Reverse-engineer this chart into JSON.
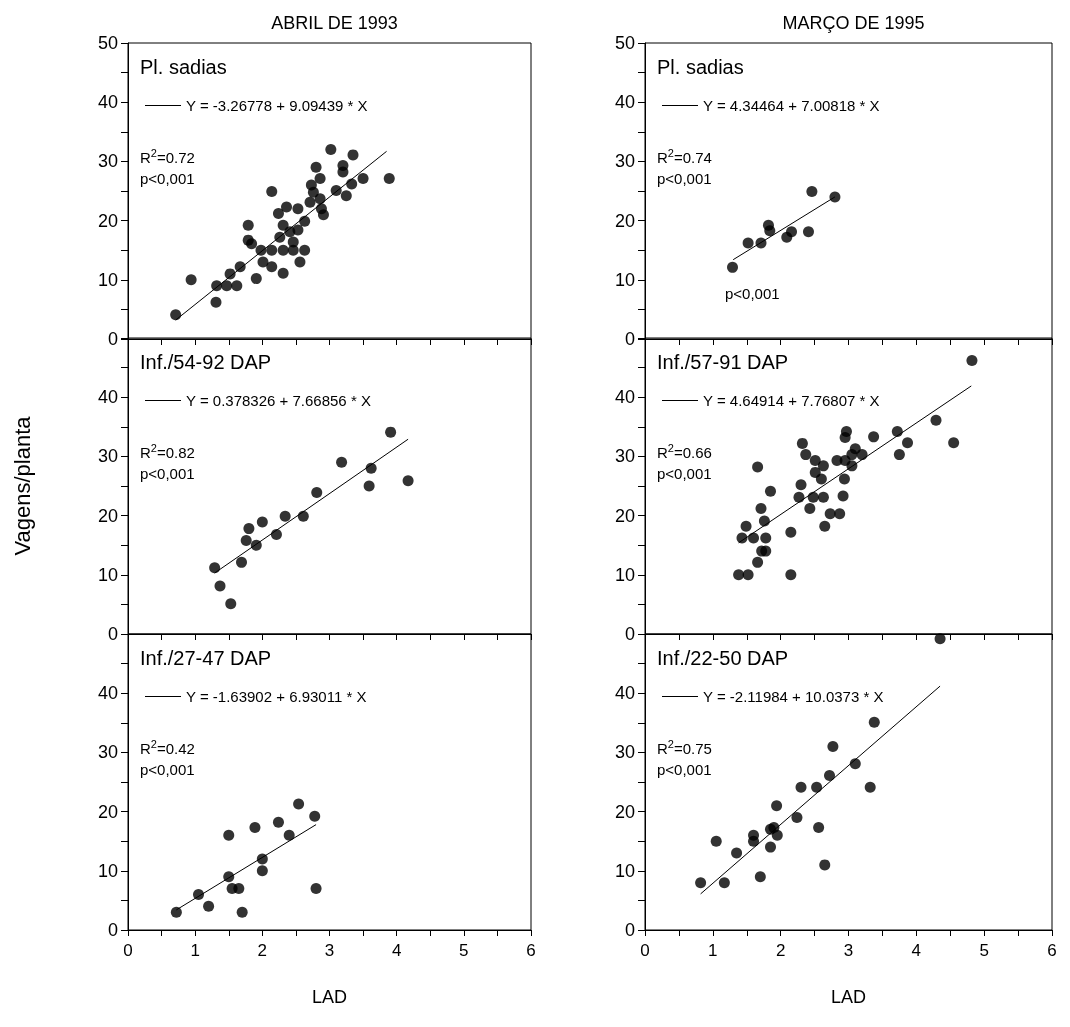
{
  "chart_data": [
    {
      "type": "scatter",
      "title": "ABRIL DE 1993",
      "legend": "top left",
      "tick_labels": "y",
      "annotations": [
        "Pl. sadias",
        "R$^{2}$=0.72",
        "p<0,001"
      ],
      "xlim": [
        0,
        6
      ],
      "xticks": [
        0,
        {
          "value": 0.5,
          "label": null
        },
        {
          "value": 1,
          "label": null
        },
        {
          "value": 1.5,
          "label": null
        },
        {
          "value": 2,
          "label": null
        },
        {
          "value": 2.5,
          "label": null
        },
        {
          "value": 3,
          "label": null
        },
        {
          "value": 3.5,
          "label": null
        },
        {
          "value": 4,
          "label": null
        },
        {
          "value": 4.5,
          "label": null
        },
        {
          "value": 5,
          "label": null
        },
        {
          "value": 5.5,
          "label": null
        },
        {
          "value": 6,
          "label": null
        }
      ],
      "ylim": [
        0,
        50
      ],
      "yticks": [
        0,
        {
          "value": 5,
          "label": null
        },
        10,
        {
          "value": 15,
          "label": null
        },
        20,
        {
          "value": 25,
          "label": null
        },
        30,
        {
          "value": 35,
          "label": null
        },
        40,
        {
          "value": 45,
          "label": null
        },
        50
      ],
      "series": [
        {
          "marker": "circle",
          "color": "#000000",
          "x": [
            0.71,
            0.94,
            1.31,
            1.32,
            1.47,
            1.62,
            1.52,
            1.67,
            1.91,
            2.31,
            2.14,
            2.01,
            2.56,
            1.98,
            2.14,
            2.31,
            2.46,
            2.63,
            2.46,
            2.26,
            2.53,
            2.41,
            2.31,
            1.79,
            1.84,
            1.79,
            2.24,
            2.36,
            2.53,
            2.63,
            2.91,
            2.88,
            2.86,
            2.71,
            2.76,
            2.73,
            2.86,
            2.8,
            2.14,
            3.1,
            3.25,
            3.33,
            3.5,
            3.89,
            3.2,
            3.2,
            3.35,
            3.02
          ],
          "values": [
            4.1,
            10,
            6.2,
            9,
            9,
            9,
            11,
            12.2,
            10.2,
            11.1,
            12.2,
            13,
            13,
            15,
            15,
            15,
            15,
            15,
            16.4,
            17.2,
            18.4,
            18.1,
            19.2,
            19.2,
            16.1,
            16.7,
            21.2,
            22.3,
            22,
            19.9,
            21,
            22,
            23.7,
            23.1,
            24.8,
            26,
            27.1,
            29,
            24.9,
            25.1,
            24.2,
            26.2,
            27.1,
            27.1,
            29.3,
            28.2,
            31.1,
            32
          ]
        },
        {
          "type": "line",
          "marker": "none",
          "name": "Y = -3.26778 + 9.09439 * X",
          "color": "#000000",
          "x": [
            0.71,
            3.85
          ],
          "values": [
            3.2,
            31.7
          ]
        }
      ]
    },
    {
      "type": "scatter",
      "title": "MARÇO DE 1995",
      "legend": "top left",
      "tick_labels": "y",
      "annotations": [
        "Pl. sadias",
        "R$^{2}$=0.74",
        "p<0,001",
        "p<0,001"
      ],
      "xlim": [
        0,
        6
      ],
      "xticks": [
        0,
        {
          "value": 0.5,
          "label": null
        },
        {
          "value": 1,
          "label": null
        },
        {
          "value": 1.5,
          "label": null
        },
        {
          "value": 2,
          "label": null
        },
        {
          "value": 2.5,
          "label": null
        },
        {
          "value": 3,
          "label": null
        },
        {
          "value": 3.5,
          "label": null
        },
        {
          "value": 4,
          "label": null
        },
        {
          "value": 4.5,
          "label": null
        },
        {
          "value": 5,
          "label": null
        },
        {
          "value": 5.5,
          "label": null
        },
        {
          "value": 6,
          "label": null
        }
      ],
      "ylim": [
        0,
        50
      ],
      "yticks": [
        0,
        {
          "value": 5,
          "label": null
        },
        10,
        {
          "value": 15,
          "label": null
        },
        20,
        {
          "value": 25,
          "label": null
        },
        30,
        {
          "value": 35,
          "label": null
        },
        40,
        {
          "value": 45,
          "label": null
        },
        50
      ],
      "series": [
        {
          "marker": "circle",
          "color": "#000000",
          "x": [
            1.29,
            1.52,
            1.71,
            1.82,
            1.84,
            2.09,
            2.16,
            2.41,
            2.46,
            2.8
          ],
          "values": [
            12.1,
            16.2,
            16.2,
            19.2,
            18.3,
            17.2,
            18.1,
            18.1,
            24.9,
            24
          ]
        },
        {
          "type": "line",
          "marker": "none",
          "name": "Y = 4.34464 + 7.00818 * X",
          "color": "#000000",
          "x": [
            1.3,
            2.8
          ],
          "values": [
            13.4,
            24
          ]
        }
      ]
    },
    {
      "type": "scatter",
      "ylabel": "Vagens/planta",
      "legend": "top left",
      "tick_labels": "y",
      "annotations": [
        "Inf./54-92 DAP",
        "R$^{2}$=0.82",
        "p<0,001"
      ],
      "xlim": [
        0,
        6
      ],
      "xticks": [
        0,
        {
          "value": 0.5,
          "label": null
        },
        {
          "value": 1,
          "label": null
        },
        {
          "value": 1.5,
          "label": null
        },
        {
          "value": 2,
          "label": null
        },
        {
          "value": 2.5,
          "label": null
        },
        {
          "value": 3,
          "label": null
        },
        {
          "value": 3.5,
          "label": null
        },
        {
          "value": 4,
          "label": null
        },
        {
          "value": 4.5,
          "label": null
        },
        {
          "value": 5,
          "label": null
        },
        {
          "value": 5.5,
          "label": null
        },
        {
          "value": 6,
          "label": null
        }
      ],
      "ylim": [
        0,
        50
      ],
      "yticks": [
        0,
        {
          "value": 5,
          "label": null
        },
        10,
        {
          "value": 15,
          "label": null
        },
        20,
        {
          "value": 25,
          "label": null
        },
        30,
        {
          "value": 35,
          "label": null
        },
        40,
        {
          "value": 45,
          "label": null
        },
        {
          "value": 50,
          "label": null
        }
      ],
      "series": [
        {
          "marker": "circle",
          "color": "#000000",
          "x": [
            1.29,
            1.37,
            1.53,
            1.69,
            1.76,
            1.8,
            1.91,
            2.0,
            2.21,
            2.34,
            2.61,
            2.81,
            3.18,
            3.59,
            3.62,
            3.91,
            4.17
          ],
          "values": [
            11.2,
            8.1,
            5.1,
            12.1,
            15.8,
            17.8,
            15,
            18.9,
            16.8,
            19.9,
            19.9,
            23.9,
            29,
            25,
            28,
            34.1,
            25.9
          ]
        },
        {
          "type": "line",
          "marker": "none",
          "name": "Y = 0.378326 + 7.66856 * X",
          "color": "#000000",
          "x": [
            1.29,
            4.17
          ],
          "values": [
            10.3,
            32.9
          ]
        }
      ]
    },
    {
      "type": "scatter",
      "legend": "top left",
      "tick_labels": "y",
      "annotations": [
        "Inf./57-91 DAP",
        "R$^{2}$=0.66",
        "p<0,001"
      ],
      "xlim": [
        0,
        6
      ],
      "xticks": [
        0,
        {
          "value": 0.5,
          "label": null
        },
        {
          "value": 1,
          "label": null
        },
        {
          "value": 1.5,
          "label": null
        },
        {
          "value": 2,
          "label": null
        },
        {
          "value": 2.5,
          "label": null
        },
        {
          "value": 3,
          "label": null
        },
        {
          "value": 3.5,
          "label": null
        },
        {
          "value": 4,
          "label": null
        },
        {
          "value": 4.5,
          "label": null
        },
        {
          "value": 5,
          "label": null
        },
        {
          "value": 5.5,
          "label": null
        },
        {
          "value": 6,
          "label": null
        }
      ],
      "ylim": [
        0,
        50
      ],
      "yticks": [
        0,
        {
          "value": 5,
          "label": null
        },
        10,
        {
          "value": 15,
          "label": null
        },
        20,
        {
          "value": 25,
          "label": null
        },
        30,
        {
          "value": 35,
          "label": null
        },
        40,
        {
          "value": 45,
          "label": null
        },
        {
          "value": 50,
          "label": null
        }
      ],
      "series": [
        {
          "marker": "circle",
          "color": "#000000",
          "x": [
            1.38,
            1.52,
            2.15,
            1.66,
            1.72,
            1.78,
            1.43,
            1.6,
            1.78,
            1.49,
            1.76,
            1.71,
            1.85,
            1.66,
            2.15,
            2.65,
            2.73,
            2.87,
            2.43,
            2.27,
            2.48,
            2.63,
            2.92,
            2.3,
            2.51,
            2.6,
            2.94,
            2.51,
            2.63,
            2.37,
            2.32,
            2.83,
            2.95,
            3.05,
            3.05,
            3.2,
            3.1,
            2.95,
            2.97,
            3.37,
            3.75,
            3.87,
            3.72,
            4.55,
            4.29,
            4.82
          ],
          "values": [
            10,
            10,
            10,
            12.1,
            14,
            14,
            16.2,
            16.2,
            16.2,
            18.2,
            19.1,
            21.2,
            24.1,
            28.2,
            17.2,
            18.2,
            20.3,
            20.3,
            21.2,
            23.1,
            23.1,
            23.1,
            23.3,
            25.2,
            27.3,
            26.2,
            26.2,
            29.3,
            28.4,
            30.3,
            32.2,
            29.3,
            29.3,
            28.4,
            30.3,
            30.3,
            31.3,
            33.2,
            34.2,
            33.3,
            30.3,
            32.3,
            34.2,
            32.3,
            36.1,
            46.2
          ]
        },
        {
          "type": "line",
          "marker": "none",
          "name": "Y = 4.64914 + 7.76807 * X",
          "color": "#000000",
          "x": [
            1.38,
            4.81
          ],
          "values": [
            15.4,
            41.9
          ]
        }
      ]
    },
    {
      "type": "scatter",
      "xlabel": "LAD",
      "legend": "top left",
      "annotations": [
        "Inf./27-47 DAP",
        "R$^{2}$=0.42",
        "p<0,001"
      ],
      "xlim": [
        0,
        6
      ],
      "xticks": [
        0,
        {
          "value": 0.5,
          "label": null
        },
        1,
        {
          "value": 1.5,
          "label": null
        },
        2,
        {
          "value": 2.5,
          "label": null
        },
        3,
        {
          "value": 3.5,
          "label": null
        },
        4,
        {
          "value": 4.5,
          "label": null
        },
        5,
        {
          "value": 5.5,
          "label": null
        },
        6
      ],
      "ylim": [
        0,
        50
      ],
      "yticks": [
        0,
        {
          "value": 5,
          "label": null
        },
        10,
        {
          "value": 15,
          "label": null
        },
        20,
        {
          "value": 25,
          "label": null
        },
        30,
        {
          "value": 35,
          "label": null
        },
        40,
        {
          "value": 45,
          "label": null
        },
        {
          "value": 50,
          "label": null
        }
      ],
      "series": [
        {
          "marker": "circle",
          "color": "#000000",
          "x": [
            0.72,
            1.05,
            1.2,
            1.5,
            1.5,
            1.55,
            1.65,
            1.7,
            1.89,
            2.0,
            2.0,
            2.24,
            2.4,
            2.54,
            2.78,
            2.8
          ],
          "values": [
            3,
            6,
            4,
            16,
            9,
            7,
            7,
            3,
            17.3,
            12,
            10,
            18.2,
            16,
            21.3,
            19.2,
            7
          ]
        },
        {
          "type": "line",
          "marker": "none",
          "name": "Y = -1.63902 + 6.93011 * X",
          "color": "#000000",
          "x": [
            0.72,
            2.8
          ],
          "values": [
            3.4,
            17.8
          ]
        }
      ]
    },
    {
      "type": "scatter",
      "xlabel": "LAD",
      "legend": "top left",
      "annotations": [
        "Inf./22-50 DAP",
        "R$^{2}$=0.75",
        "p<0,001"
      ],
      "xlim": [
        0,
        6
      ],
      "xticks": [
        0,
        {
          "value": 0.5,
          "label": null
        },
        1,
        {
          "value": 1.5,
          "label": null
        },
        2,
        {
          "value": 2.5,
          "label": null
        },
        3,
        {
          "value": 3.5,
          "label": null
        },
        4,
        {
          "value": 4.5,
          "label": null
        },
        5,
        {
          "value": 5.5,
          "label": null
        },
        6
      ],
      "ylim": [
        0,
        50
      ],
      "yticks": [
        0,
        {
          "value": 5,
          "label": null
        },
        10,
        {
          "value": 15,
          "label": null
        },
        20,
        {
          "value": 25,
          "label": null
        },
        30,
        {
          "value": 35,
          "label": null
        },
        40,
        {
          "value": 45,
          "label": null
        },
        {
          "value": 50,
          "label": null
        }
      ],
      "series": [
        {
          "marker": "circle",
          "color": "#000000",
          "x": [
            0.82,
            1.05,
            1.17,
            1.35,
            1.6,
            1.6,
            1.7,
            1.85,
            1.85,
            1.95,
            1.94,
            1.9,
            2.24,
            2.3,
            2.53,
            2.56,
            2.65,
            2.72,
            2.77,
            3.1,
            3.32,
            3.38,
            4.35
          ],
          "values": [
            8,
            15,
            8,
            13,
            16,
            15,
            9,
            17,
            14,
            16,
            21,
            17.3,
            19,
            24.1,
            24.1,
            17.3,
            11,
            26.1,
            31,
            28.1,
            24.1,
            35.1,
            49.2
          ]
        },
        {
          "type": "line",
          "marker": "none",
          "name": "Y = -2.11984 + 10.0373 * X",
          "color": "#000000",
          "x": [
            0.82,
            4.35
          ],
          "values": [
            6.1,
            41.2
          ]
        }
      ]
    }
  ]
}
